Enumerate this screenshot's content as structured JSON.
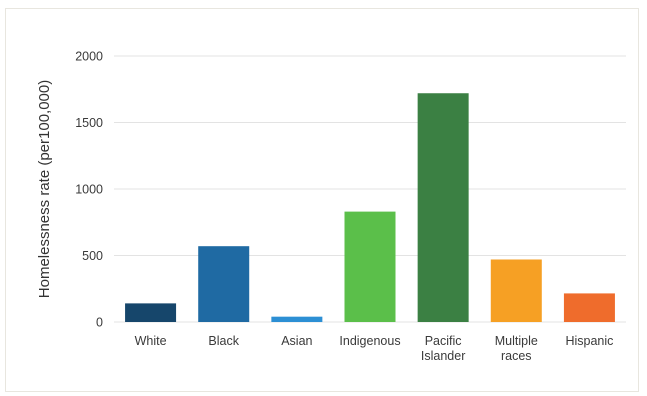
{
  "chart_data": {
    "type": "bar",
    "title": "",
    "xlabel": "",
    "ylabel": "Homelessness rate (per100,000)",
    "ylim": [
      0,
      2000
    ],
    "yticks": [
      0,
      500,
      1000,
      1500,
      2000
    ],
    "grid": true,
    "categories": [
      [
        "White"
      ],
      [
        "Black"
      ],
      [
        "Asian"
      ],
      [
        "Indigenous"
      ],
      [
        "Pacific",
        "Islander"
      ],
      [
        "Multiple",
        "races"
      ],
      [
        "Hispanic"
      ]
    ],
    "values": [
      140,
      570,
      40,
      830,
      1720,
      470,
      215
    ],
    "colors": [
      "#16466b",
      "#1f6aa3",
      "#2c8fd4",
      "#5bbf4a",
      "#3b8043",
      "#f6a024",
      "#ef6c2c"
    ]
  }
}
